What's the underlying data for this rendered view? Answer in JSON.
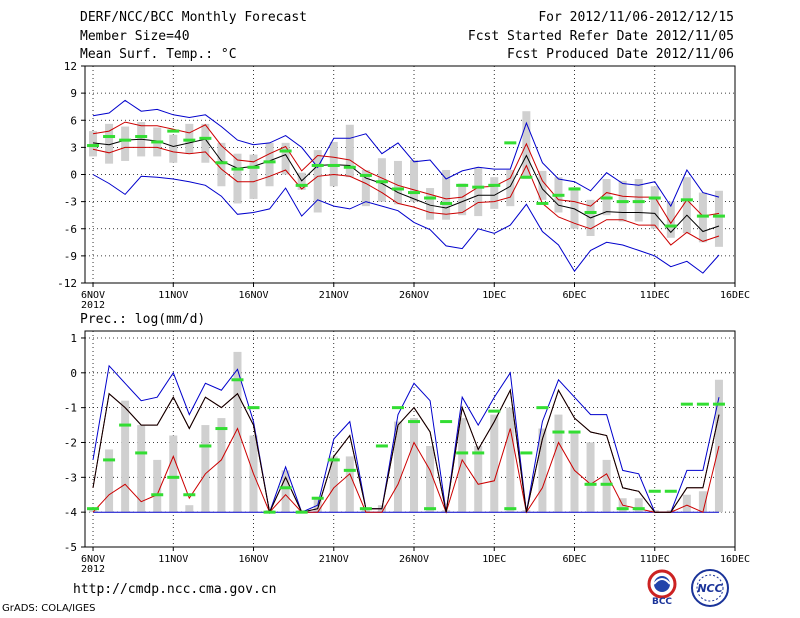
{
  "header": {
    "left": [
      "DERF/NCC/BCC Monthly Forecast",
      "Member Size=40",
      "Mean Surf. Temp.: °C"
    ],
    "right": [
      "For 2012/11/06-2012/12/15",
      "Fcst Started Refer Date 2012/11/05",
      "Fcst Produced Date 2012/11/06"
    ]
  },
  "footer": {
    "url": "http://cmdp.ncc.cma.gov.cn",
    "grads": "GrADS: COLA/IGES",
    "logo_left_text": "BCC",
    "logo_right_text": "NCC"
  },
  "colors": {
    "upper": "#0000cc",
    "mean": "#000000",
    "quart": "#cc0000",
    "box": "#d0d0d0",
    "obs": "#33dd33",
    "grid": "#000000"
  },
  "chart_data": [
    {
      "type": "line",
      "title": "Mean Surf. Temp.: °C",
      "ylim": [
        -12,
        12
      ],
      "yticks": [
        -12,
        -9,
        -6,
        -3,
        0,
        3,
        6,
        9,
        12
      ],
      "xticks": [
        {
          "day": 1,
          "label": "6NOV",
          "sub": "2012"
        },
        {
          "day": 6,
          "label": "11NOV"
        },
        {
          "day": 11,
          "label": "16NOV"
        },
        {
          "day": 16,
          "label": "21NOV"
        },
        {
          "day": 21,
          "label": "26NOV"
        },
        {
          "day": 26,
          "label": "1DEC"
        },
        {
          "day": 31,
          "label": "6DEC"
        },
        {
          "day": 36,
          "label": "11DEC"
        },
        {
          "day": 41,
          "label": "16DEC"
        }
      ],
      "xlim": [
        0.5,
        41
      ],
      "days": [
        1,
        2,
        3,
        4,
        5,
        6,
        7,
        8,
        9,
        10,
        11,
        12,
        13,
        14,
        15,
        16,
        17,
        18,
        19,
        20,
        21,
        22,
        23,
        24,
        25,
        26,
        27,
        28,
        29,
        30,
        31,
        32,
        33,
        34,
        35,
        36,
        37,
        38,
        39,
        40
      ],
      "max": [
        6.5,
        6.8,
        8.2,
        7.0,
        7.2,
        6.6,
        6.3,
        6.6,
        5.3,
        3.8,
        3.3,
        3.5,
        4.3,
        3.0,
        0.8,
        4.0,
        4.0,
        4.5,
        2.3,
        3.5,
        1.4,
        1.6,
        -0.5,
        0.4,
        0.8,
        0.6,
        0.6,
        5.7,
        1.3,
        -0.5,
        -0.8,
        -1.8,
        0.2,
        -1.0,
        -1.2,
        -0.8,
        -3.5,
        0.5,
        -2.0,
        -2.5
      ],
      "q3": [
        4.5,
        4.8,
        5.8,
        5.4,
        5.4,
        5.0,
        4.6,
        5.5,
        3.2,
        1.6,
        1.4,
        2.3,
        3.1,
        0.4,
        2.1,
        1.9,
        1.6,
        0.4,
        -0.4,
        -1.2,
        -1.7,
        -2.2,
        -2.7,
        -2.5,
        -1.4,
        -1.3,
        -0.4,
        3.4,
        -0.7,
        -2.8,
        -3.0,
        -3.5,
        -2.0,
        -2.4,
        -2.5,
        -2.5,
        -5.4,
        -2.8,
        -4.6,
        -4.3
      ],
      "mean": [
        3.5,
        3.3,
        3.8,
        3.9,
        3.7,
        3.1,
        3.5,
        3.9,
        1.5,
        0.7,
        0.9,
        1.5,
        2.2,
        -0.7,
        1.0,
        1.1,
        1.0,
        -0.4,
        -1.0,
        -2.0,
        -2.7,
        -3.4,
        -3.7,
        -3.0,
        -2.3,
        -2.3,
        -1.3,
        2.1,
        -1.6,
        -3.4,
        -3.8,
        -4.8,
        -4.1,
        -4.2,
        -4.2,
        -4.3,
        -6.4,
        -4.5,
        -6.3,
        -5.7
      ],
      "q1": [
        2.8,
        2.4,
        3.0,
        3.0,
        3.0,
        2.5,
        2.3,
        2.5,
        0.6,
        -0.8,
        -0.8,
        -0.2,
        0.5,
        -1.6,
        -0.2,
        0.0,
        -0.2,
        -1.0,
        -2.0,
        -3.2,
        -3.6,
        -4.2,
        -4.4,
        -4.2,
        -3.1,
        -3.0,
        -2.5,
        1.0,
        -3.2,
        -4.7,
        -5.4,
        -6.0,
        -5.0,
        -5.0,
        -5.6,
        -5.6,
        -7.8,
        -6.4,
        -7.4,
        -6.8
      ],
      "min": [
        0.0,
        -1.0,
        -2.2,
        -0.2,
        -0.3,
        -0.5,
        -0.8,
        -1.2,
        -2.4,
        -4.4,
        -4.2,
        -3.8,
        -1.5,
        -4.6,
        -2.8,
        -3.5,
        -3.8,
        -3.0,
        -3.5,
        -4.0,
        -5.3,
        -6.1,
        -7.9,
        -8.2,
        -6.0,
        -6.5,
        -5.6,
        -3.3,
        -6.3,
        -7.8,
        -10.7,
        -8.4,
        -7.5,
        -7.8,
        -8.4,
        -9.0,
        -10.2,
        -9.6,
        -10.9,
        -8.9
      ],
      "box_top": [
        4.8,
        5.6,
        5.3,
        5.8,
        5.2,
        4.4,
        5.6,
        5.6,
        3.5,
        2.3,
        2.2,
        3.5,
        3.5,
        0.2,
        2.7,
        3.6,
        5.5,
        0.5,
        1.8,
        1.5,
        1.6,
        -1.5,
        0.5,
        -1.0,
        0.7,
        -0.3,
        0.5,
        7.0,
        0.4,
        -0.3,
        -1.4,
        -2.8,
        -0.5,
        -0.7,
        -0.5,
        -1.3,
        -3.0,
        -0.3,
        -2.0,
        -1.8
      ],
      "box_bottom": [
        2.0,
        1.2,
        1.5,
        2.0,
        2.0,
        1.3,
        2.3,
        1.3,
        -1.3,
        -3.2,
        -2.7,
        -1.3,
        0.0,
        -1.7,
        -4.2,
        -1.3,
        -0.3,
        -3.5,
        -3.0,
        -3.3,
        -3.0,
        -5.0,
        -5.0,
        -4.5,
        -4.6,
        -3.8,
        -3.5,
        -0.5,
        -2.8,
        -4.2,
        -6.0,
        -6.8,
        -4.5,
        -5.2,
        -5.2,
        -6.0,
        -7.0,
        -6.5,
        -7.5,
        -8.0
      ],
      "obs": [
        3.2,
        4.2,
        3.8,
        4.2,
        3.6,
        4.8,
        3.8,
        4.0,
        1.3,
        0.6,
        0.8,
        1.4,
        2.6,
        -1.2,
        1.0,
        1.0,
        0.8,
        -0.1,
        -0.8,
        -1.6,
        -2.0,
        -2.6,
        -3.2,
        -1.2,
        -1.4,
        -1.2,
        3.5,
        -0.3,
        -3.2,
        -2.3,
        -1.6,
        -4.2,
        -2.6,
        -3.0,
        -3.0,
        -2.6,
        -5.7,
        -2.8,
        -4.6,
        -4.6
      ]
    },
    {
      "type": "line",
      "title": "Prec.: log(mm/d)",
      "ylim": [
        -5,
        1.2
      ],
      "yticks": [
        -5,
        -4,
        -3,
        -2,
        -1,
        0,
        1
      ],
      "xticks": [
        {
          "day": 1,
          "label": "6NOV",
          "sub": "2012"
        },
        {
          "day": 6,
          "label": "11NOV"
        },
        {
          "day": 11,
          "label": "16NOV"
        },
        {
          "day": 16,
          "label": "21NOV"
        },
        {
          "day": 21,
          "label": "26NOV"
        },
        {
          "day": 26,
          "label": "1DEC"
        },
        {
          "day": 31,
          "label": "6DEC"
        },
        {
          "day": 36,
          "label": "11DEC"
        },
        {
          "day": 41,
          "label": "16DEC"
        }
      ],
      "xlim": [
        0.5,
        41
      ],
      "days": [
        1,
        2,
        3,
        4,
        5,
        6,
        7,
        8,
        9,
        10,
        11,
        12,
        13,
        14,
        15,
        16,
        17,
        18,
        19,
        20,
        21,
        22,
        23,
        24,
        25,
        26,
        27,
        28,
        29,
        30,
        31,
        32,
        33,
        34,
        35,
        36,
        37,
        38,
        39,
        40
      ],
      "max": [
        -2.5,
        0.2,
        -0.3,
        -0.8,
        -0.7,
        0.0,
        -1.2,
        -0.3,
        -0.5,
        0.1,
        -1.4,
        -4.0,
        -2.7,
        -4.0,
        -3.8,
        -1.9,
        -1.4,
        -3.9,
        -3.9,
        -1.2,
        -0.3,
        -0.8,
        -4.0,
        -0.7,
        -1.5,
        -0.7,
        0.0,
        -4.0,
        -1.4,
        -0.2,
        -0.7,
        -1.2,
        -1.2,
        -2.8,
        -2.9,
        -4.0,
        -4.0,
        -2.8,
        -2.8,
        -0.7
      ],
      "q3": [
        -3.3,
        -0.6,
        -1.0,
        -1.5,
        -1.5,
        -0.7,
        -1.6,
        -0.7,
        -1.0,
        -0.6,
        -1.5,
        -4.0,
        -3.0,
        -4.0,
        -3.9,
        -2.4,
        -1.8,
        -3.9,
        -3.9,
        -1.5,
        -1.0,
        -1.7,
        -4.0,
        -1.0,
        -2.2,
        -1.4,
        -0.5,
        -4.0,
        -1.9,
        -0.5,
        -1.3,
        -1.7,
        -1.8,
        -3.3,
        -3.4,
        -4.0,
        -4.0,
        -3.3,
        -3.3,
        -1.2
      ],
      "mean": [
        -3.3,
        -0.6,
        -1.0,
        -1.5,
        -1.5,
        -0.7,
        -1.6,
        -0.7,
        -1.0,
        -0.6,
        -1.5,
        -4.0,
        -3.0,
        -4.0,
        -3.9,
        -2.4,
        -1.8,
        -3.9,
        -3.9,
        -1.5,
        -1.0,
        -1.7,
        -4.0,
        -1.0,
        -2.2,
        -1.4,
        -0.5,
        -4.0,
        -1.9,
        -0.5,
        -1.3,
        -1.7,
        -1.8,
        -3.3,
        -3.4,
        -4.0,
        -4.0,
        -3.3,
        -3.3,
        -1.2
      ],
      "q1": [
        -4.0,
        -3.5,
        -3.2,
        -3.7,
        -3.5,
        -2.4,
        -3.6,
        -2.9,
        -2.5,
        -1.6,
        -2.9,
        -4.0,
        -3.5,
        -4.0,
        -4.0,
        -3.3,
        -2.9,
        -4.0,
        -4.0,
        -3.2,
        -2.0,
        -2.8,
        -4.0,
        -2.5,
        -3.2,
        -3.1,
        -1.6,
        -4.0,
        -3.3,
        -2.0,
        -2.8,
        -3.2,
        -2.9,
        -3.8,
        -3.9,
        -4.0,
        -4.0,
        -3.8,
        -4.0,
        -2.1
      ],
      "min": [
        -4.0,
        -4.0,
        -4.0,
        -4.0,
        -4.0,
        -4.0,
        -4.0,
        -4.0,
        -4.0,
        -4.0,
        -4.0,
        -4.0,
        -4.0,
        -4.0,
        -4.0,
        -4.0,
        -4.0,
        -4.0,
        -4.0,
        -4.0,
        -4.0,
        -4.0,
        -4.0,
        -4.0,
        -4.0,
        -4.0,
        -4.0,
        -4.0,
        -4.0,
        -4.0,
        -4.0,
        -4.0,
        -4.0,
        -4.0,
        -4.0,
        -4.0,
        -4.0,
        -4.0,
        -4.0,
        -4.0
      ],
      "box_top": [
        -4.0,
        -2.2,
        -0.8,
        -1.5,
        -2.5,
        -1.8,
        -3.8,
        -1.5,
        -1.3,
        0.6,
        -1.8,
        -4.0,
        -2.8,
        -4.0,
        -3.6,
        -2.4,
        -2.4,
        -4.0,
        -3.8,
        -1.4,
        -1.3,
        -2.1,
        -4.0,
        -1.3,
        -2.1,
        -1.2,
        -1.0,
        -4.0,
        -1.6,
        -1.2,
        -1.7,
        -2.0,
        -2.5,
        -3.6,
        -3.6,
        -4.0,
        -4.0,
        -3.5,
        -3.4,
        -0.2
      ],
      "box_bottom": [
        -4.0,
        -4.0,
        -4.0,
        -4.0,
        -4.0,
        -4.0,
        -4.0,
        -4.0,
        -4.0,
        -4.0,
        -4.0,
        -4.0,
        -4.0,
        -4.0,
        -4.0,
        -4.0,
        -4.0,
        -4.0,
        -4.0,
        -4.0,
        -4.0,
        -4.0,
        -4.0,
        -4.0,
        -4.0,
        -4.0,
        -4.0,
        -4.0,
        -4.0,
        -4.0,
        -4.0,
        -4.0,
        -4.0,
        -4.0,
        -4.0,
        -4.0,
        -4.0,
        -4.0,
        -4.0,
        -4.0
      ],
      "obs": [
        -3.9,
        -2.5,
        -1.5,
        -2.3,
        -3.5,
        -3.0,
        -3.5,
        -2.1,
        -1.6,
        -0.2,
        -1.0,
        -4.0,
        -3.3,
        -4.0,
        -3.6,
        -2.5,
        -2.8,
        -3.9,
        -2.1,
        -1.0,
        -1.4,
        -3.9,
        -1.4,
        -2.3,
        -2.3,
        -1.1,
        -3.9,
        -2.3,
        -1.0,
        -1.7,
        -1.7,
        -3.2,
        -3.2,
        -3.9,
        -3.9,
        -3.4,
        -3.4,
        -0.9,
        -0.9,
        -0.9
      ]
    }
  ]
}
